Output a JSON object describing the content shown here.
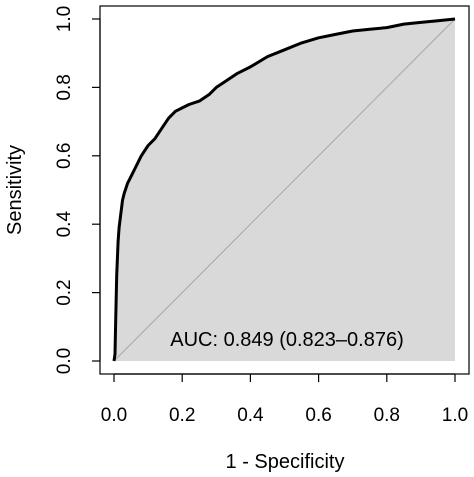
{
  "chart_data": {
    "type": "area",
    "xlabel": "1 - Specificity",
    "ylabel": "Sensitivity",
    "xlim": [
      0,
      1
    ],
    "ylim": [
      0,
      1
    ],
    "xticks": [
      "0.0",
      "0.2",
      "0.4",
      "0.6",
      "0.8",
      "1.0"
    ],
    "yticks": [
      "0.0",
      "0.2",
      "0.4",
      "0.6",
      "0.8",
      "1.0"
    ],
    "grid": false,
    "legend": "none",
    "annotation": "AUC: 0.849 (0.823–0.876)",
    "colors": {
      "curve": "#000000",
      "fill": "#d9d9d9",
      "diagonal": "#a6a6a6",
      "frame": "#000000"
    },
    "series": [
      {
        "x": [
          0,
          0.003,
          0.005,
          0.008,
          0.012,
          0.015,
          0.02,
          0.025,
          0.03,
          0.04,
          0.05,
          0.06,
          0.08,
          0.1,
          0.12,
          0.14,
          0.16,
          0.18,
          0.2,
          0.22,
          0.25,
          0.28,
          0.3,
          0.33,
          0.36,
          0.4,
          0.45,
          0.5,
          0.55,
          0.6,
          0.65,
          0.7,
          0.75,
          0.8,
          0.85,
          0.9,
          0.95,
          1.0
        ],
        "y": [
          0,
          0.02,
          0.12,
          0.25,
          0.35,
          0.39,
          0.43,
          0.47,
          0.49,
          0.52,
          0.54,
          0.56,
          0.6,
          0.63,
          0.65,
          0.68,
          0.71,
          0.73,
          0.74,
          0.75,
          0.76,
          0.78,
          0.8,
          0.82,
          0.84,
          0.86,
          0.89,
          0.91,
          0.93,
          0.945,
          0.955,
          0.965,
          0.97,
          0.975,
          0.985,
          0.99,
          0.995,
          1.0
        ]
      }
    ]
  }
}
